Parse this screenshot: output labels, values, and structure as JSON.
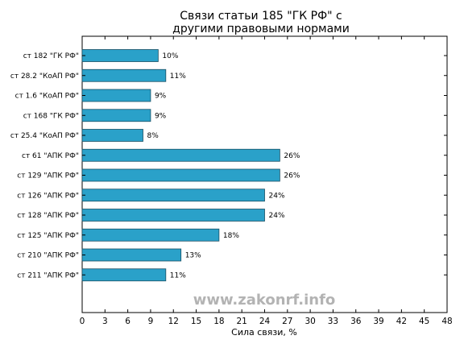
{
  "chart_data": {
    "type": "bar",
    "orientation": "horizontal",
    "title_lines": [
      "Связи статьи 185 \"ГК РФ\" с",
      "другими правовыми нормами"
    ],
    "xlabel": "Сила связи, %",
    "ylabel": "",
    "xlim": [
      0,
      48
    ],
    "xticks": [
      0,
      3,
      6,
      9,
      12,
      15,
      18,
      21,
      24,
      27,
      30,
      33,
      36,
      39,
      42,
      45,
      48
    ],
    "categories": [
      "ст 182 \"ГК РФ\"",
      "ст 28.2 \"КоАП РФ\"",
      "ст 1.6 \"КоАП РФ\"",
      "ст 168 \"ГК РФ\"",
      "ст 25.4 \"КоАП РФ\"",
      "ст 61 \"АПК РФ\"",
      "ст 129 \"АПК РФ\"",
      "ст 126 \"АПК РФ\"",
      "ст 128 \"АПК РФ\"",
      "ст 125 \"АПК РФ\"",
      "ст 210 \"АПК РФ\"",
      "ст 211 \"АПК РФ\""
    ],
    "values": [
      10,
      11,
      9,
      9,
      8,
      26,
      26,
      24,
      24,
      18,
      13,
      11
    ],
    "value_labels": [
      "10%",
      "11%",
      "9%",
      "9%",
      "8%",
      "26%",
      "26%",
      "24%",
      "24%",
      "18%",
      "13%",
      "11%"
    ],
    "bar_color": "#2aa1c9",
    "bar_edge_color": "#1a4f63",
    "grid": false,
    "watermark": "www.zakonrf.info"
  }
}
